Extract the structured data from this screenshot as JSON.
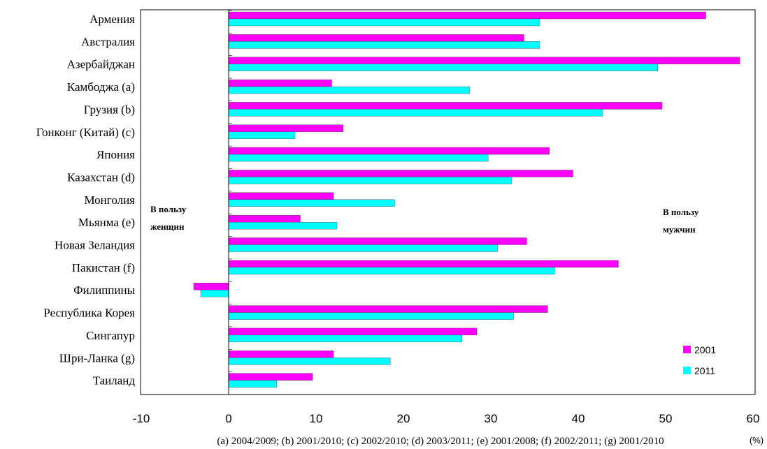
{
  "chart_data": {
    "type": "bar",
    "orientation": "horizontal",
    "categories": [
      "Армения",
      "Австралия",
      "Азербайджан",
      "Камбоджа (a)",
      "Грузия (b)",
      "Гонконг (Китай) (c)",
      "Япония",
      "Казахстан (d)",
      "Монголия",
      "Мьянма (e)",
      "Новая Зеландия",
      "Пакистан (f)",
      "Филиппины",
      "Республика Корея",
      "Сингапур",
      "Шри-Ланка (g)",
      "Таиланд"
    ],
    "series": [
      {
        "name": "2001",
        "color": "#ff00ff",
        "values": [
          54.6,
          33.8,
          58.5,
          11.8,
          49.6,
          13.1,
          36.7,
          39.4,
          12.0,
          8.2,
          34.1,
          44.6,
          -4.0,
          36.5,
          28.4,
          12.0,
          9.6
        ]
      },
      {
        "name": "2011",
        "color": "#00ffff",
        "values": [
          35.6,
          35.6,
          49.1,
          27.6,
          42.8,
          7.6,
          29.7,
          32.4,
          19.0,
          12.4,
          30.8,
          37.3,
          -3.2,
          32.6,
          26.7,
          18.5,
          5.5
        ]
      }
    ],
    "xlim": [
      -10,
      60
    ],
    "xticks": [
      "-10",
      "0",
      "10",
      "20",
      "30",
      "40",
      "50",
      "60"
    ],
    "xlabel": "(%)",
    "legend_position": "bottom-right",
    "annotations": {
      "women_line1": "В пользу",
      "women_line2": "женщин",
      "men_line1": "В пользу",
      "men_line2": "мужчин"
    },
    "footnote": "(a) 2004/2009; (b) 2001/2010; (c) 2002/2010; (d) 2003/2011; (e) 2001/2008; (f) 2002/2011; (g) 2001/2010"
  }
}
